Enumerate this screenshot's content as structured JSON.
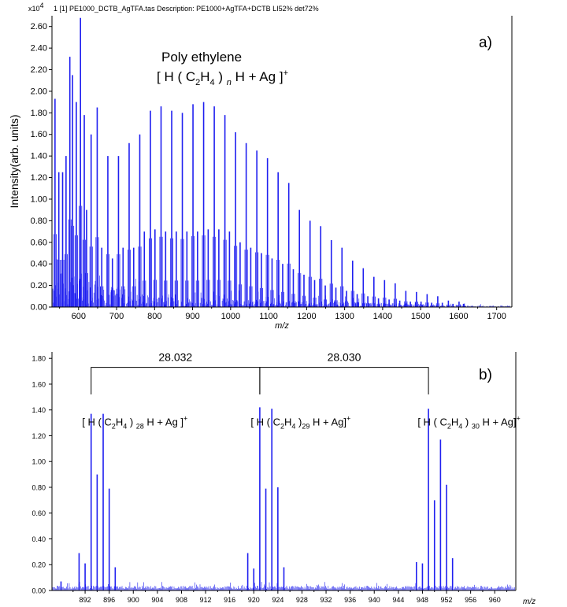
{
  "chart_data": [
    {
      "id": "a",
      "type": "line",
      "panel_label": "a)",
      "header": "1 [1] PE1000_DCTB_AgTFA.tas  Description: PE1000+AgTFA+DCTB LI52% det72%",
      "scale_prefix": "x10",
      "scale_exponent": "4",
      "title": "Poly ethylene",
      "formula": {
        "open": "[ H ( C",
        "sub1": "2",
        "mid": "H",
        "sub2": "4",
        "close_paren": " ) ",
        "n": "n",
        "tail": " H + Ag ]",
        "sup": "+"
      },
      "xlabel": "m/z",
      "ylabel": "Intensity(arb. units)",
      "xlim": [
        530,
        1740
      ],
      "ylim": [
        0,
        2.7
      ],
      "xticks": [
        "600",
        "700",
        "800",
        "900",
        "1000",
        "1100",
        "1200",
        "1300",
        "1400",
        "1500",
        "1600",
        "1700"
      ],
      "yticks": [
        "0.00",
        "0.20",
        "0.40",
        "0.60",
        "0.80",
        "1.00",
        "1.20",
        "1.40",
        "1.60",
        "1.80",
        "2.00",
        "2.20",
        "2.40",
        "2.60"
      ],
      "series": [
        {
          "name": "spectrum",
          "color": "#1f1ff0",
          "x": [
            538,
            548,
            558,
            567,
            577,
            584,
            594,
            605,
            615,
            621,
            633,
            649,
            661,
            677,
            689,
            705,
            717,
            733,
            745,
            761,
            773,
            789,
            801,
            817,
            829,
            845,
            857,
            873,
            885,
            901,
            913,
            929,
            941,
            957,
            969,
            985,
            997,
            1013,
            1025,
            1041,
            1053,
            1069,
            1081,
            1097,
            1109,
            1125,
            1137,
            1153,
            1165,
            1181,
            1193,
            1209,
            1221,
            1237,
            1249,
            1265,
            1277,
            1293,
            1305,
            1321,
            1333,
            1349,
            1361,
            1377,
            1389,
            1405,
            1417,
            1433,
            1445,
            1461,
            1473,
            1489,
            1501,
            1517,
            1529,
            1545,
            1557,
            1573,
            1585,
            1601,
            1613
          ],
          "y": [
            1.93,
            1.25,
            1.25,
            1.4,
            2.32,
            2.15,
            1.9,
            2.68,
            1.78,
            0.9,
            1.6,
            1.85,
            0.55,
            1.4,
            0.45,
            1.4,
            0.55,
            1.52,
            0.55,
            1.6,
            0.7,
            1.82,
            0.72,
            1.86,
            0.7,
            1.82,
            0.7,
            1.8,
            0.7,
            1.88,
            0.7,
            1.9,
            0.72,
            1.86,
            0.72,
            1.78,
            0.7,
            1.62,
            0.6,
            1.52,
            0.55,
            1.45,
            0.5,
            1.38,
            0.45,
            1.25,
            0.4,
            1.15,
            0.35,
            0.9,
            0.3,
            0.8,
            0.25,
            0.75,
            0.2,
            0.62,
            0.18,
            0.55,
            0.15,
            0.43,
            0.12,
            0.36,
            0.1,
            0.28,
            0.08,
            0.25,
            0.07,
            0.22,
            0.06,
            0.15,
            0.05,
            0.14,
            0.05,
            0.12,
            0.04,
            0.1,
            0.04,
            0.06,
            0.03,
            0.05,
            0.03
          ]
        }
      ]
    },
    {
      "id": "b",
      "type": "line",
      "panel_label": "b)",
      "xlabel": "m/z",
      "xlim": [
        886.5,
        963.5
      ],
      "ylim": [
        0,
        1.85
      ],
      "xticks": [
        "892",
        "896",
        "900",
        "904",
        "908",
        "912",
        "916",
        "920",
        "924",
        "928",
        "932",
        "936",
        "940",
        "944",
        "948",
        "952",
        "956",
        "960"
      ],
      "yticks": [
        "0.00",
        "0.20",
        "0.40",
        "0.60",
        "0.80",
        "1.00",
        "1.20",
        "1.40",
        "1.60",
        "1.80"
      ],
      "brackets": [
        {
          "label": "28.032",
          "from": 893.0,
          "to": 921.0
        },
        {
          "label": "28.030",
          "from": 921.0,
          "to": 949.0
        }
      ],
      "annotations": [
        {
          "open": "[ H ( C",
          "sub1": "2",
          "mid": "H",
          "sub2": "4",
          "close_paren": " ) ",
          "n": "28",
          "tail": " H + Ag ]",
          "sup": "+",
          "at": 891.5
        },
        {
          "open": "[ H ( C",
          "sub1": "2",
          "mid": "H",
          "sub2": "4",
          "close_paren": " )",
          "n": "29",
          "tail": " H + Ag]",
          "sup": "+",
          "at": 919.5
        },
        {
          "open": "[ H ( C",
          "sub1": "2",
          "mid": "H",
          "sub2": "4",
          "close_paren": " ) ",
          "n": "30",
          "tail": " H + Ag]",
          "sup": "+",
          "at": 947.2
        }
      ],
      "series": [
        {
          "name": "spectrum",
          "color": "#1f1ff0",
          "x": [
            888.0,
            891.0,
            892.0,
            893.0,
            894.0,
            895.0,
            896.0,
            897.0,
            919.0,
            920.0,
            921.0,
            922.0,
            923.0,
            924.0,
            925.0,
            947.0,
            948.0,
            949.0,
            950.0,
            951.0,
            952.0,
            953.0
          ],
          "y": [
            0.07,
            0.29,
            0.21,
            1.37,
            0.9,
            1.37,
            0.79,
            0.18,
            0.29,
            0.17,
            1.42,
            0.79,
            1.41,
            0.8,
            0.18,
            0.22,
            0.21,
            1.41,
            0.7,
            1.17,
            0.82,
            0.25
          ]
        }
      ]
    }
  ]
}
